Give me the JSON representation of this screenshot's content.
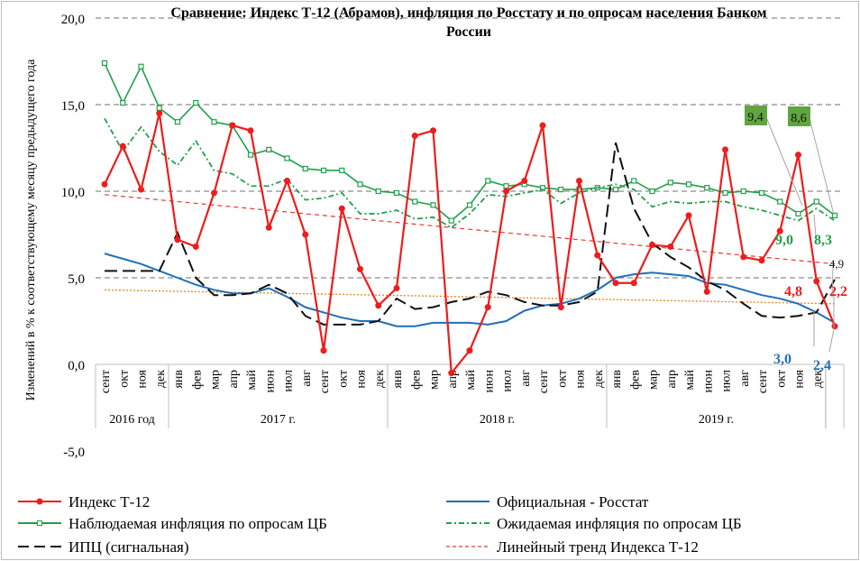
{
  "chart_data": {
    "type": "line",
    "title": "Сравнение: Индекс Т-12 (Абрамов), инфляция по Росстату и по опросам населения Банком России",
    "title_lines": [
      "Сравнение: Индекс Т-12 (Абрамов), инфляция по Росстату и по опросам населения Банком",
      "России"
    ],
    "ylabel": "Изменений в % к соответствующему месяцу предыдущего года",
    "ylim": [
      -5,
      20
    ],
    "yticks": [
      "-5,0",
      "0,0",
      "5,0",
      "10,0",
      "15,0",
      "20,0"
    ],
    "ytick_values": [
      -5,
      0,
      5,
      10,
      15,
      20
    ],
    "grid": true,
    "legend_position": "bottom",
    "months": [
      "сент",
      "окт",
      "ноя",
      "дек",
      "янв",
      "фев",
      "мар",
      "апр",
      "май",
      "июн",
      "июл",
      "авг",
      "сент",
      "окт",
      "ноя",
      "дек",
      "янв",
      "фев",
      "мар",
      "апр",
      "май",
      "июн",
      "июл",
      "авг",
      "сент",
      "окт",
      "ноя",
      "дек",
      "янв",
      "фев",
      "мар",
      "апр",
      "май",
      "июн",
      "июл",
      "авг",
      "сент",
      "окт",
      "ноя",
      "дек",
      ""
    ],
    "years": [
      {
        "label": "2016 год",
        "start": 0,
        "count": 4
      },
      {
        "label": "2017 г.",
        "start": 4,
        "count": 12
      },
      {
        "label": "2018 г.",
        "start": 16,
        "count": 12
      },
      {
        "label": "2019 г.",
        "start": 28,
        "count": 12
      }
    ],
    "series": [
      {
        "name": "Наблюдаемая инфляция по опросам ЦБ",
        "color": "#21a04a",
        "style": "square",
        "values": [
          17.4,
          15.1,
          17.2,
          14.8,
          14.0,
          15.1,
          14.0,
          13.8,
          12.1,
          12.4,
          11.9,
          11.3,
          11.2,
          11.2,
          10.4,
          10.0,
          9.9,
          9.4,
          9.2,
          8.3,
          9.2,
          10.6,
          10.3,
          10.4,
          10.2,
          10.1,
          10.1,
          10.2,
          10.1,
          10.6,
          10.0,
          10.5,
          10.4,
          10.2,
          9.9,
          10.0,
          9.9,
          9.4,
          8.7,
          9.4,
          8.6
        ]
      },
      {
        "name": "Ожидаемая инфляция по опросам ЦБ",
        "color": "#21a04a",
        "style": "dashdot",
        "values": [
          14.2,
          12.3,
          13.7,
          12.3,
          11.5,
          12.9,
          11.2,
          11.0,
          10.3,
          10.3,
          10.7,
          9.5,
          9.6,
          9.9,
          8.7,
          8.7,
          8.9,
          8.4,
          8.5,
          7.9,
          8.7,
          9.8,
          9.7,
          9.9,
          10.1,
          9.3,
          9.9,
          10.2,
          10.4,
          10.1,
          9.1,
          9.4,
          9.3,
          9.4,
          9.4,
          9.1,
          8.9,
          8.6,
          8.3,
          9.0,
          8.3
        ]
      },
      {
        "name": "Линейный тренд Индекса Т-12",
        "color": "#e8392f",
        "style": "dashed-thin",
        "values": [
          9.8,
          5.8
        ],
        "linear": true
      },
      {
        "name": "Линейный тренд (Росстат)",
        "color": "#f08a2c",
        "style": "dotted",
        "values": [
          4.3,
          3.5
        ],
        "linear": true,
        "legend": false
      },
      {
        "name": "Официальная - Росстат",
        "color": "#1f6fb8",
        "style": "solid",
        "values": [
          6.4,
          6.1,
          5.8,
          5.4,
          5.0,
          4.6,
          4.3,
          4.1,
          4.1,
          4.4,
          3.9,
          3.3,
          3.0,
          2.7,
          2.5,
          2.5,
          2.2,
          2.2,
          2.4,
          2.4,
          2.4,
          2.3,
          2.5,
          3.1,
          3.4,
          3.5,
          3.8,
          4.3,
          5.0,
          5.2,
          5.3,
          5.2,
          5.1,
          4.7,
          4.6,
          4.3,
          4.0,
          3.8,
          3.5,
          3.0,
          2.4
        ]
      },
      {
        "name": "ИПЦ (сигнальная)",
        "color": "#111111",
        "style": "longdash",
        "values": [
          5.4,
          5.4,
          5.4,
          5.4,
          7.6,
          5.0,
          4.0,
          4.0,
          4.1,
          4.6,
          4.1,
          2.8,
          2.3,
          2.3,
          2.3,
          2.5,
          3.8,
          3.2,
          3.3,
          3.6,
          3.8,
          4.2,
          4.0,
          3.6,
          3.4,
          3.4,
          3.6,
          4.2,
          12.8,
          9.0,
          7.0,
          6.2,
          5.6,
          4.8,
          4.3,
          3.5,
          2.8,
          2.7,
          2.8,
          3.0,
          4.9
        ]
      },
      {
        "name": "Индекс Т-12",
        "color": "#ee1c1c",
        "style": "dot",
        "values": [
          10.4,
          12.6,
          10.1,
          14.5,
          7.2,
          6.8,
          9.9,
          13.8,
          13.5,
          7.9,
          10.6,
          7.5,
          0.8,
          9.0,
          5.5,
          3.4,
          4.4,
          13.2,
          13.5,
          -0.5,
          0.8,
          3.3,
          10.0,
          10.6,
          13.8,
          3.3,
          10.6,
          6.3,
          4.7,
          4.7,
          6.9,
          6.8,
          8.6,
          4.2,
          12.4,
          6.2,
          6.0,
          7.7,
          12.1,
          4.8,
          2.2
        ]
      }
    ],
    "annotations": [
      {
        "text": "9,4",
        "color": "#111111",
        "boxed": true,
        "fill": "#5fa540"
      },
      {
        "text": "8,6",
        "color": "#111111",
        "boxed": true,
        "fill": "#5fa540"
      },
      {
        "text": "9,0",
        "color": "#21a04a"
      },
      {
        "text": "8,3",
        "color": "#21a04a"
      },
      {
        "text": "4,9",
        "color": "#111111"
      },
      {
        "text": "4,8",
        "color": "#ee1c1c"
      },
      {
        "text": "2,2",
        "color": "#ee1c1c"
      },
      {
        "text": "3,0",
        "color": "#1f6fb8"
      },
      {
        "text": "2,4",
        "color": "#1f6fb8"
      }
    ],
    "legend": [
      {
        "label": "Индекс Т-12",
        "series": 6
      },
      {
        "label": "Официальная - Росстат",
        "series": 4
      },
      {
        "label": "Наблюдаемая инфляция по опросам ЦБ",
        "series": 0
      },
      {
        "label": "Ожидаемая инфляция по опросам ЦБ",
        "series": 1
      },
      {
        "label": "ИПЦ (сигнальная)",
        "series": 5
      },
      {
        "label": "Линейный тренд Индекса Т-12",
        "series": 2
      }
    ]
  }
}
